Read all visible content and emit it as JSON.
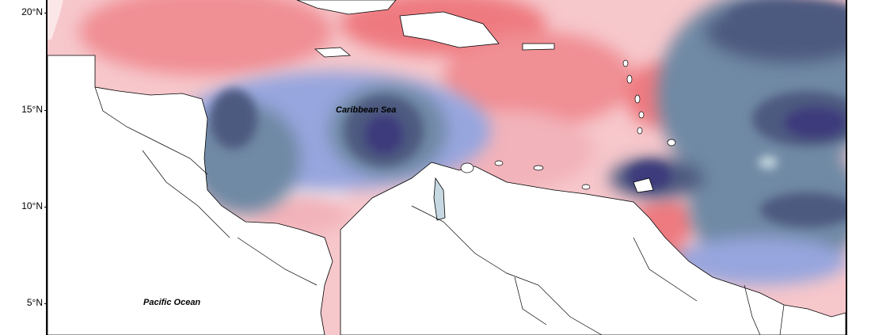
{
  "map": {
    "y_axis_labels": [
      "20°N",
      "15°N",
      "10°N",
      "5°N"
    ],
    "place_labels": {
      "caribbean": "Caribbean Sea",
      "pacific": "Pacific Ocean"
    },
    "colors": {
      "strong_neg": "#3e3a7c",
      "neg2": "#4e5a80",
      "neg3": "#6f89a4",
      "neg4": "#97a6de",
      "neg5": "#c6d9e2",
      "neutral": "#fbe6e8",
      "pos1": "#f2b3ba",
      "pos2": "#f08f94",
      "pos3": "#ee7a80"
    }
  }
}
